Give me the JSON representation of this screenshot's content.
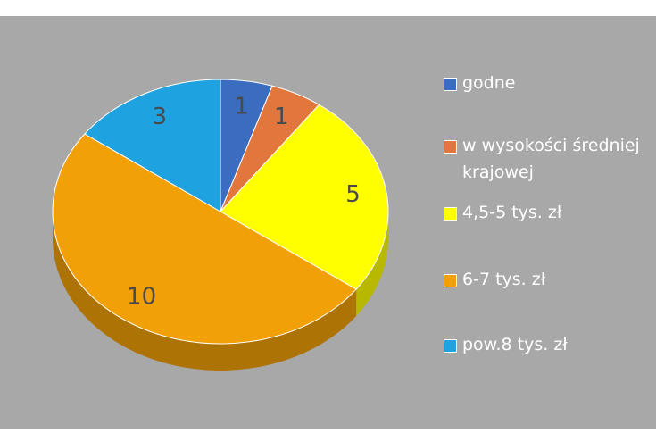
{
  "chart_data": {
    "type": "pie",
    "categories": [
      "godne",
      "w wysokości średniej krajowej",
      "4,5-5 tys. zł",
      "6-7 tys. zł",
      "pow.8 tys. zł"
    ],
    "values": [
      1,
      1,
      5,
      10,
      3
    ],
    "colors": [
      "#3a6cc0",
      "#e2773e",
      "#ffff00",
      "#f2a007",
      "#1fa2e0"
    ],
    "legend": "right"
  }
}
